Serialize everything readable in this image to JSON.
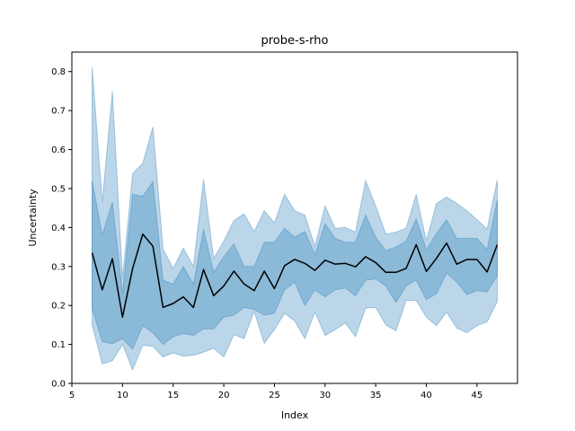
{
  "chart_data": {
    "type": "line",
    "title": "probe-s-rho",
    "xlabel": "Index",
    "ylabel": "Uncertainty",
    "xlim": [
      5,
      49
    ],
    "ylim": [
      0.0,
      0.85
    ],
    "xticks": [
      5,
      10,
      15,
      20,
      25,
      30,
      35,
      40,
      45
    ],
    "yticks": [
      0.0,
      0.1,
      0.2,
      0.3,
      0.4,
      0.5,
      0.6,
      0.7,
      0.8
    ],
    "grid": false,
    "x": [
      7,
      8,
      9,
      10,
      11,
      12,
      13,
      14,
      15,
      16,
      17,
      18,
      19,
      20,
      21,
      22,
      23,
      24,
      25,
      26,
      27,
      28,
      29,
      30,
      31,
      32,
      33,
      34,
      35,
      36,
      37,
      38,
      39,
      40,
      41,
      42,
      43,
      44,
      45,
      46,
      47
    ],
    "series": [
      {
        "kind": "line",
        "color": "#000000",
        "values": [
          0.335,
          0.24,
          0.32,
          0.17,
          0.295,
          0.383,
          0.352,
          0.195,
          0.205,
          0.222,
          0.195,
          0.292,
          0.225,
          0.25,
          0.288,
          0.255,
          0.238,
          0.288,
          0.243,
          0.302,
          0.318,
          0.308,
          0.29,
          0.316,
          0.306,
          0.308,
          0.299,
          0.325,
          0.31,
          0.285,
          0.285,
          0.295,
          0.356,
          0.287,
          0.321,
          0.36,
          0.306,
          0.318,
          0.318,
          0.286,
          0.356
        ]
      },
      {
        "kind": "band",
        "color": "#1f77b4",
        "opacity": 0.3,
        "upper": [
          0.812,
          0.465,
          0.75,
          0.27,
          0.538,
          0.565,
          0.658,
          0.345,
          0.295,
          0.347,
          0.3,
          0.523,
          0.32,
          0.365,
          0.418,
          0.435,
          0.39,
          0.443,
          0.412,
          0.485,
          0.443,
          0.432,
          0.352,
          0.455,
          0.398,
          0.4,
          0.388,
          0.52,
          0.455,
          0.383,
          0.388,
          0.398,
          0.485,
          0.365,
          0.462,
          0.478,
          0.462,
          0.443,
          0.42,
          0.396,
          0.522
        ],
        "lower": [
          0.15,
          0.05,
          0.058,
          0.1,
          0.035,
          0.098,
          0.095,
          0.068,
          0.078,
          0.07,
          0.072,
          0.08,
          0.09,
          0.068,
          0.125,
          0.115,
          0.185,
          0.103,
          0.138,
          0.18,
          0.16,
          0.115,
          0.183,
          0.123,
          0.138,
          0.155,
          0.12,
          0.193,
          0.195,
          0.15,
          0.135,
          0.213,
          0.213,
          0.17,
          0.148,
          0.183,
          0.142,
          0.13,
          0.148,
          0.158,
          0.21
        ]
      },
      {
        "kind": "band",
        "color": "#1f77b4",
        "opacity": 0.3,
        "upper": [
          0.52,
          0.38,
          0.465,
          0.23,
          0.485,
          0.48,
          0.517,
          0.265,
          0.255,
          0.3,
          0.255,
          0.395,
          0.285,
          0.325,
          0.358,
          0.3,
          0.3,
          0.362,
          0.362,
          0.398,
          0.375,
          0.39,
          0.33,
          0.41,
          0.372,
          0.362,
          0.362,
          0.432,
          0.375,
          0.34,
          0.35,
          0.365,
          0.422,
          0.343,
          0.385,
          0.42,
          0.372,
          0.372,
          0.372,
          0.343,
          0.47
        ],
        "lower": [
          0.192,
          0.107,
          0.102,
          0.115,
          0.088,
          0.148,
          0.13,
          0.1,
          0.12,
          0.128,
          0.123,
          0.14,
          0.14,
          0.17,
          0.175,
          0.195,
          0.19,
          0.175,
          0.18,
          0.24,
          0.26,
          0.2,
          0.24,
          0.222,
          0.24,
          0.245,
          0.225,
          0.265,
          0.268,
          0.25,
          0.208,
          0.25,
          0.265,
          0.215,
          0.23,
          0.283,
          0.26,
          0.228,
          0.238,
          0.235,
          0.275
        ]
      }
    ]
  }
}
